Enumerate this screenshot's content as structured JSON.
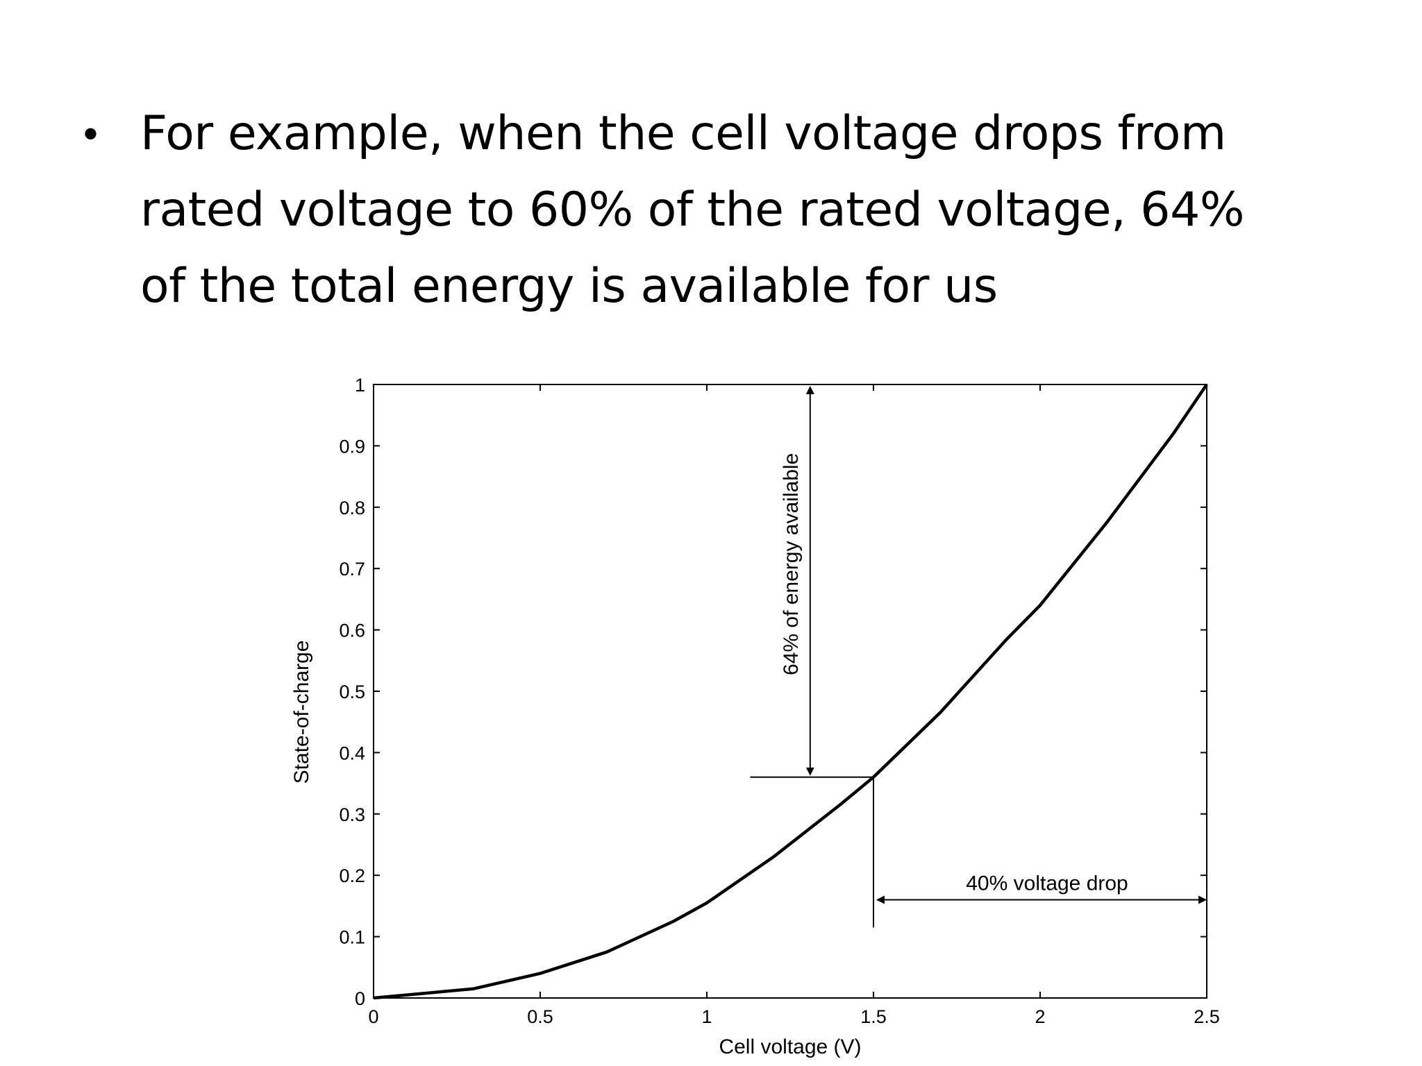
{
  "slide": {
    "bullet": "•",
    "lines": [
      "For example, when the cell voltage drops from",
      "rated voltage to 60% of the rated voltage, 64%",
      "of the total energy is available for us"
    ]
  },
  "chart_data": {
    "type": "line",
    "title": "",
    "xlabel": "Cell voltage (V)",
    "ylabel": "State-of-charge",
    "xlim": [
      0,
      2.5
    ],
    "ylim": [
      0,
      1
    ],
    "xticks": [
      0,
      0.5,
      1,
      1.5,
      2,
      2.5
    ],
    "xtick_labels": [
      "0",
      "0.5",
      "1",
      "1.5",
      "2",
      "2.5"
    ],
    "yticks": [
      0,
      0.1,
      0.2,
      0.3,
      0.4,
      0.5,
      0.6,
      0.7,
      0.8,
      0.9,
      1
    ],
    "ytick_labels": [
      "0",
      "0.1",
      "0.2",
      "0.3",
      "0.4",
      "0.5",
      "0.6",
      "0.7",
      "0.8",
      "0.9",
      "1"
    ],
    "grid": false,
    "series": [
      {
        "x": [
          0,
          0.3,
          0.5,
          0.7,
          0.9,
          1.0,
          1.2,
          1.4,
          1.5,
          1.7,
          1.9,
          2.0,
          2.2,
          2.4,
          2.5
        ],
        "y": [
          0,
          0.015,
          0.04,
          0.075,
          0.125,
          0.155,
          0.23,
          0.315,
          0.36,
          0.465,
          0.585,
          0.64,
          0.775,
          0.92,
          1.0
        ],
        "color": "#000000"
      }
    ],
    "annotations": [
      {
        "label": "64% of energy available",
        "type": "vertical-arrow",
        "x": 1.31,
        "from_y": 1.0,
        "to_y": 0.36
      },
      {
        "label": "40% voltage drop",
        "type": "horizontal-arrow",
        "y": 0.16,
        "from_x": 1.5,
        "to_x": 2.5
      }
    ],
    "reference_lines": [
      {
        "type": "horizontal",
        "y": 0.36,
        "x_from": 1.13,
        "x_to": 1.5
      },
      {
        "type": "vertical",
        "x": 1.5,
        "y_from": 0.115,
        "y_to": 0.36
      }
    ]
  }
}
